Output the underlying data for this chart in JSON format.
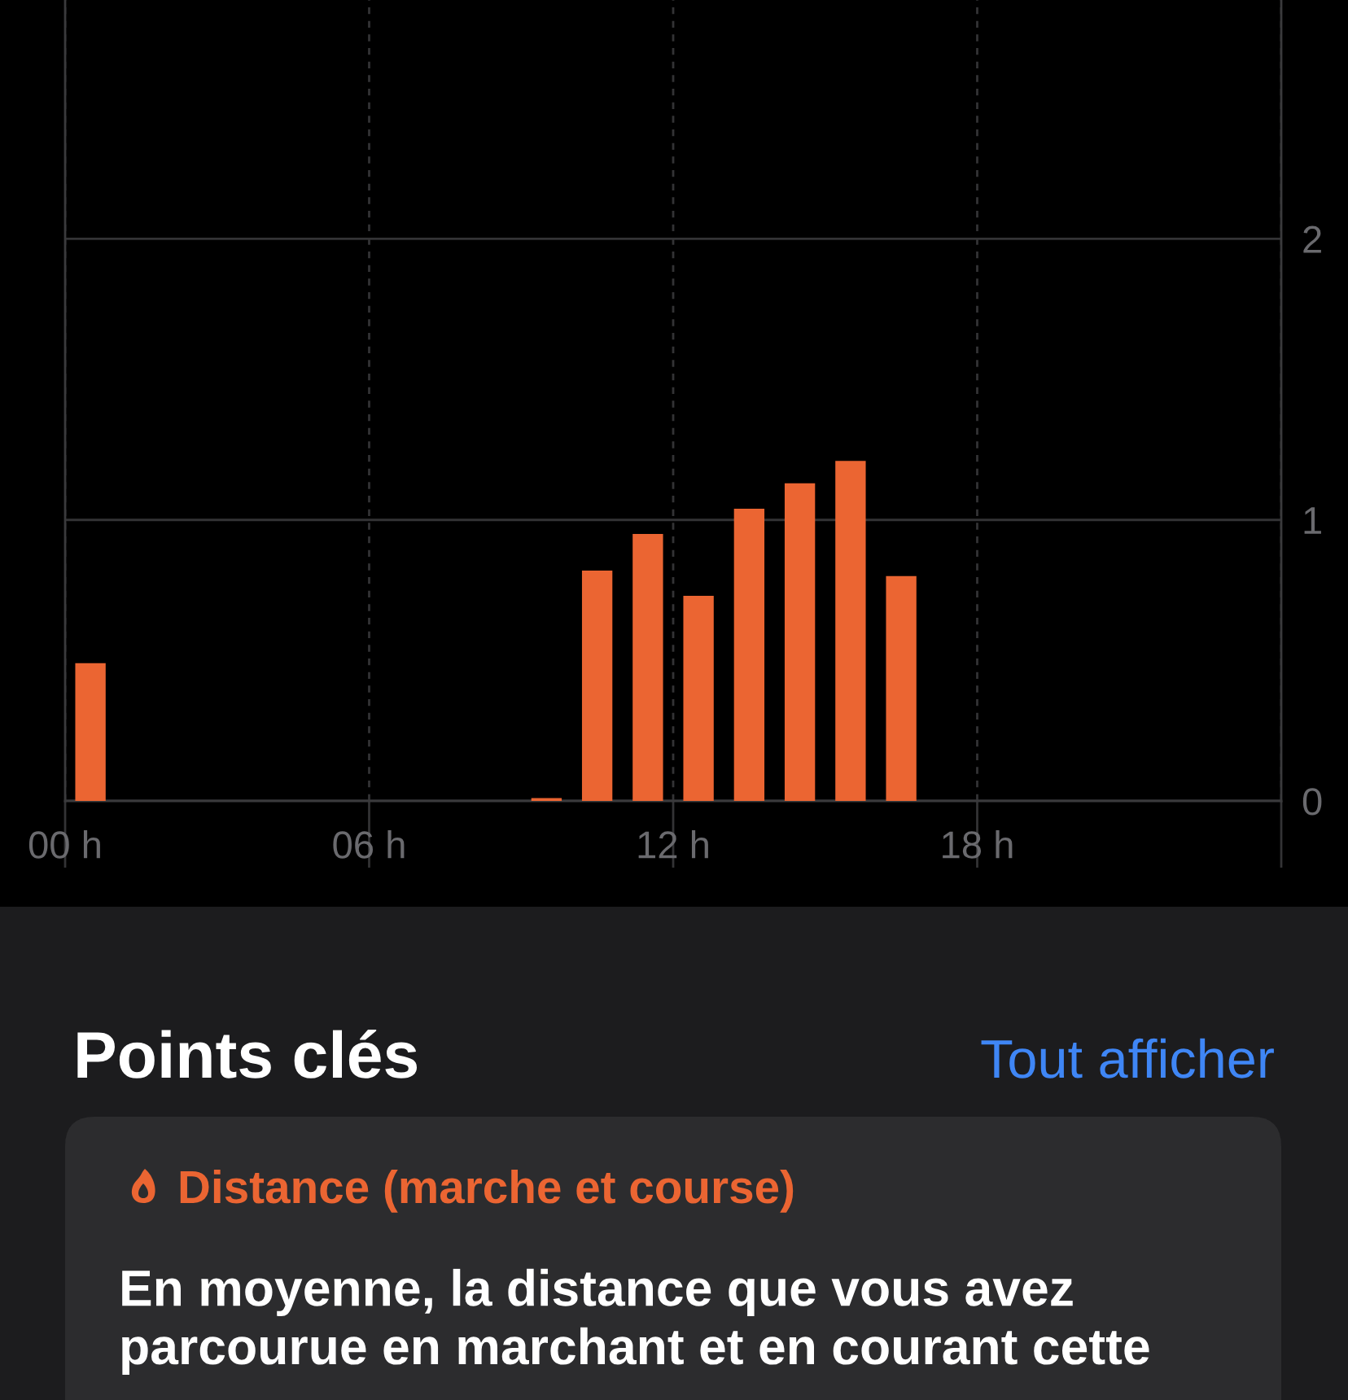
{
  "chart_data": {
    "type": "bar",
    "x": [
      0.5,
      9.5,
      10.5,
      11.5,
      12.5,
      13.5,
      14.5,
      15.5,
      16.5
    ],
    "values": [
      0.49,
      0.01,
      0.82,
      0.95,
      0.73,
      1.04,
      1.13,
      1.21,
      0.8
    ],
    "color": "#eb6532",
    "xlim": [
      0,
      24
    ],
    "xticks": [
      {
        "value": 0,
        "label": "00 h"
      },
      {
        "value": 6,
        "label": "06 h"
      },
      {
        "value": 12,
        "label": "12 h"
      },
      {
        "value": 18,
        "label": "18 h"
      },
      {
        "value": 24,
        "label": null
      }
    ],
    "ylim": [
      0,
      2.85
    ],
    "yticks": [
      0,
      1,
      2
    ],
    "grid": true,
    "annotations": [
      "Points clés",
      "Tout afficher",
      "Distance (marche et course)",
      "En moyenne, la distance que vous avez\nparcourue en marchant et en courant cette"
    ]
  }
}
